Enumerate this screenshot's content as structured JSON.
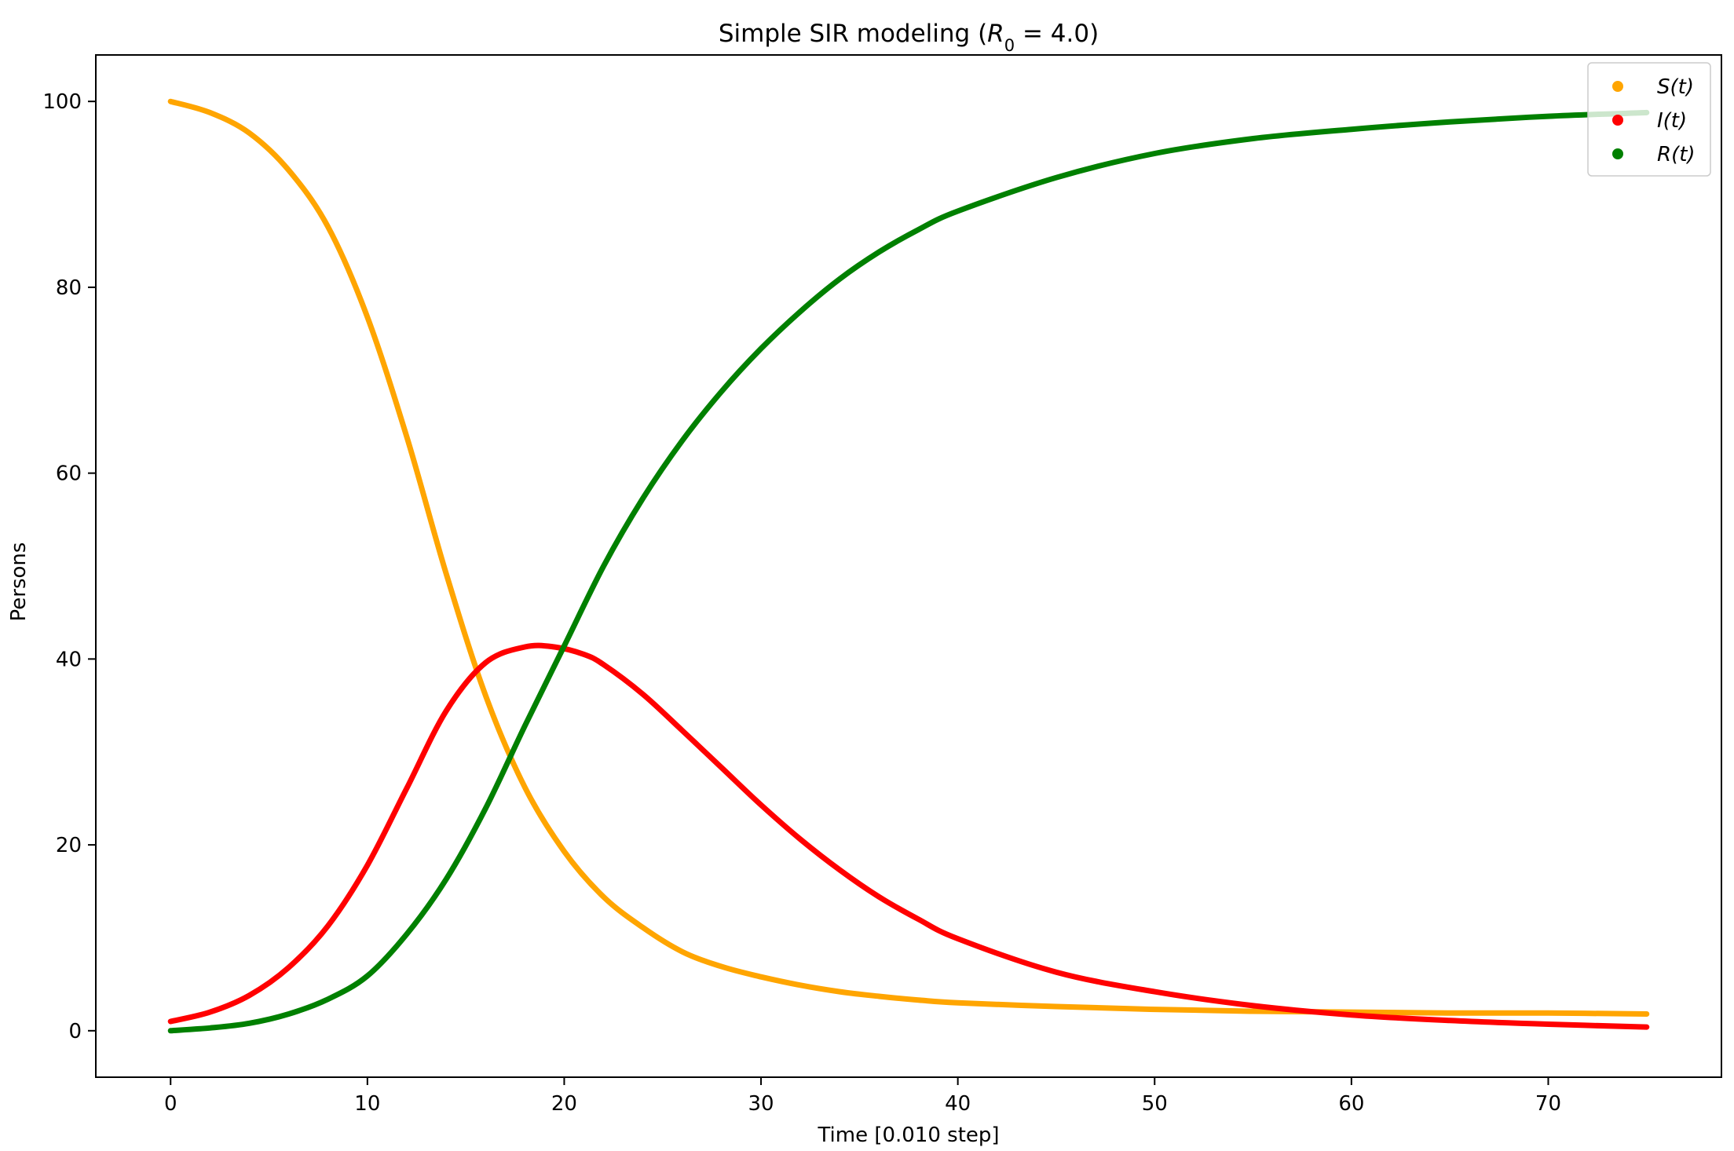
{
  "chart_data": {
    "type": "scatter",
    "title_prefix": "Simple SIR modeling (",
    "title_symbol": "R",
    "title_subscript": "0",
    "title_equation": " = 4.0)",
    "xlabel": "Time [0.010 step]",
    "ylabel": "Persons",
    "xlim": [
      -3.8,
      78.8
    ],
    "ylim": [
      -5,
      105
    ],
    "xticks": [
      0,
      10,
      20,
      30,
      40,
      50,
      60,
      70
    ],
    "yticks": [
      0,
      20,
      40,
      60,
      80,
      100
    ],
    "grid": false,
    "legend_position": "top-right",
    "series": [
      {
        "name": "S(t)",
        "color": "#FFA500",
        "x": [
          0,
          2,
          4,
          6,
          8,
          10,
          12,
          14,
          16,
          18,
          20,
          22,
          24,
          26,
          28,
          30,
          32,
          34,
          36,
          38,
          40,
          45,
          50,
          55,
          60,
          65,
          70,
          75
        ],
        "y": [
          100,
          98.8,
          96.6,
          92.6,
          86.5,
          76.8,
          63.9,
          49.2,
          36.1,
          26.2,
          19.3,
          14.4,
          11.1,
          8.5,
          6.9,
          5.8,
          4.9,
          4.2,
          3.7,
          3.3,
          3,
          2.6,
          2.3,
          2.1,
          2,
          1.9,
          1.9,
          1.8
        ]
      },
      {
        "name": "I(t)",
        "color": "#FF0000",
        "x": [
          0,
          2,
          4,
          6,
          8,
          10,
          12,
          14,
          16,
          18,
          19.5,
          21,
          22,
          24,
          26,
          28,
          30,
          32,
          34,
          36,
          38,
          40,
          45,
          50,
          55,
          60,
          65,
          70,
          75
        ],
        "y": [
          1,
          2,
          3.8,
          6.8,
          11.3,
          17.8,
          26.1,
          34.4,
          39.6,
          41.3,
          41.3,
          40.5,
          39.4,
          36.2,
          32.3,
          28.3,
          24.3,
          20.6,
          17.3,
          14.4,
          12,
          9.9,
          6.3,
          4.2,
          2.7,
          1.7,
          1.1,
          0.7,
          0.4
        ]
      },
      {
        "name": "R(t)",
        "color": "#008000",
        "x": [
          0,
          2,
          4,
          6,
          8,
          10,
          12,
          14,
          16,
          18,
          20,
          22,
          24,
          26,
          28,
          30,
          32,
          34,
          36,
          38,
          40,
          45,
          50,
          55,
          60,
          65,
          70,
          75
        ],
        "y": [
          0,
          0.3,
          0.8,
          1.8,
          3.4,
          5.9,
          10.4,
          16.3,
          23.9,
          32.8,
          41.4,
          50,
          57.3,
          63.5,
          68.8,
          73.4,
          77.4,
          80.9,
          83.8,
          86.2,
          88.2,
          91.8,
          94.4,
          96,
          97,
          97.8,
          98.4,
          98.8
        ]
      }
    ]
  }
}
